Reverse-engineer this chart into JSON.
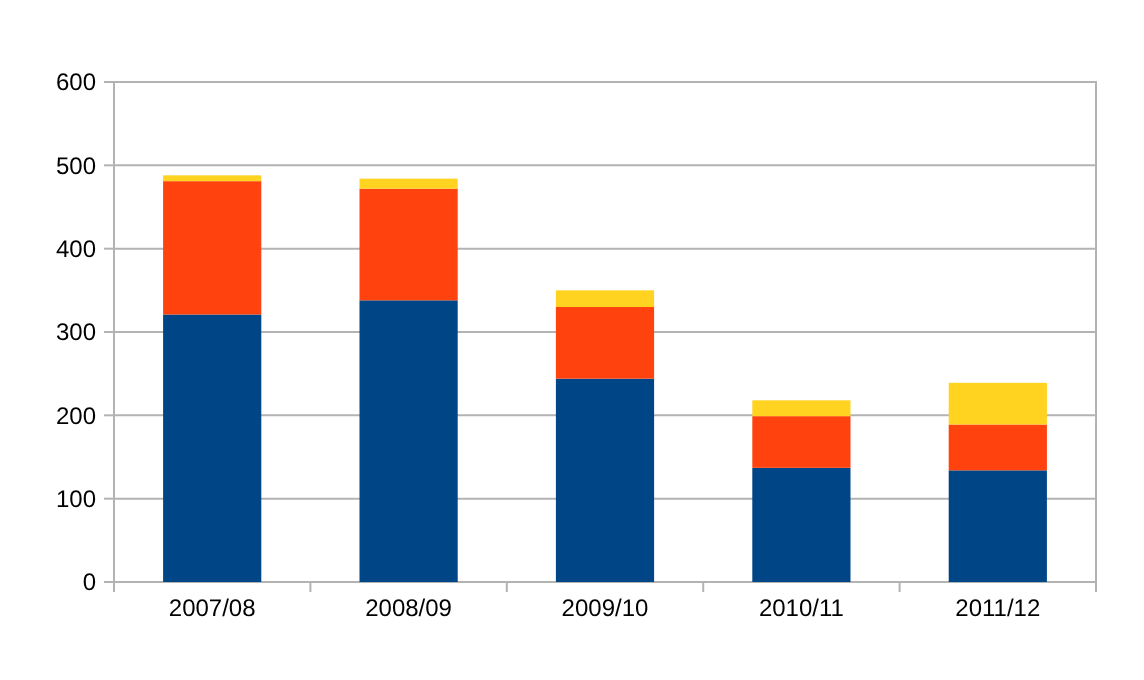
{
  "chart_data": {
    "type": "bar",
    "stacked": true,
    "categories": [
      "2007/08",
      "2008/09",
      "2009/10",
      "2010/11",
      "2011/12"
    ],
    "series": [
      {
        "color": "#004586",
        "values": [
          321,
          338,
          244,
          137,
          134
        ]
      },
      {
        "color": "#ff420e",
        "values": [
          160,
          134,
          86,
          62,
          55
        ]
      },
      {
        "color": "#ffd320",
        "values": [
          7,
          12,
          20,
          19,
          50
        ]
      }
    ],
    "ylim": [
      0,
      600
    ],
    "yticks": [
      0,
      100,
      200,
      300,
      400,
      500,
      600
    ],
    "grid": "y"
  }
}
